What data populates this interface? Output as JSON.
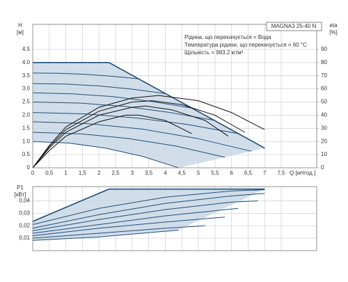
{
  "chart_data": [
    {
      "type": "line",
      "ylabel": "H",
      "yunit": "[м]",
      "y2label": "eta",
      "y2unit": "[%]",
      "xlabel": "Q [м³/год.]",
      "note": {
        "title": "MAGNA3 25-40 N",
        "lines": [
          "Рідина, що перекачується = Вода",
          "Температура рідини, що перекачується = 60 °C",
          "Щільність = 983.2 кг/м³"
        ]
      },
      "xlim": [
        0,
        8.57
      ],
      "ylim": [
        0,
        5.45
      ],
      "y2lim": [
        0,
        109
      ],
      "grid": true,
      "xticks": [
        0,
        {
          "value": 0.5,
          "label": "0,5"
        },
        1,
        {
          "value": 1.5,
          "label": "1,5"
        },
        2,
        {
          "value": 2.5,
          "label": "2,5"
        },
        3,
        {
          "value": 3.5,
          "label": "3,5"
        },
        4,
        {
          "value": 4.5,
          "label": "4,5"
        },
        5,
        {
          "value": 5.5,
          "label": "5,5"
        },
        6,
        {
          "value": 6.5,
          "label": "6,5"
        },
        7,
        {
          "value": 7.5,
          "label": "7,5"
        }
      ],
      "yticks": [
        0,
        0.5,
        {
          "value": 1,
          "label": "1.0"
        },
        1.5,
        {
          "value": 2,
          "label": "2.0"
        },
        2.5,
        {
          "value": 3,
          "label": "3.0"
        },
        3.5,
        {
          "value": 4,
          "label": "4.0"
        },
        4.5
      ],
      "y2ticks": [
        0,
        10,
        20,
        30,
        40,
        50,
        60,
        70,
        80,
        90
      ],
      "envelope": {
        "color": "#c9d8e6",
        "x": [
          0,
          2.3,
          7.0,
          4.4,
          3.3,
          2.2,
          1.1,
          0
        ],
        "y": [
          4.0,
          4.0,
          0.75,
          0,
          0.44,
          0.75,
          0.94,
          1.0
        ]
      },
      "series": [
        {
          "color": "#1f4e79",
          "x": [
            0,
            2.3,
            7.0
          ],
          "values": [
            4.0,
            4.0,
            0.75
          ]
        },
        {
          "color": "#1f4e79",
          "x": [
            0,
            0.8,
            1.6,
            2.4,
            3.2
          ],
          "values": [
            3.6,
            3.59,
            3.55,
            3.48,
            3.38
          ]
        },
        {
          "color": "#1f4e79",
          "x": [
            0,
            1,
            2,
            3,
            4
          ],
          "values": [
            3.2,
            3.18,
            3.11,
            2.99,
            2.82
          ]
        },
        {
          "color": "#1f4e79",
          "x": [
            0,
            1.2,
            2.4,
            3.6,
            4.8
          ],
          "values": [
            2.85,
            2.81,
            2.71,
            2.52,
            2.27
          ]
        },
        {
          "color": "#1f4e79",
          "x": [
            0,
            1.4,
            2.8,
            4.1,
            5.5
          ],
          "values": [
            2.5,
            2.46,
            2.33,
            2.11,
            1.8
          ]
        },
        {
          "color": "#1f4e79",
          "x": [
            0,
            1.55,
            3.1,
            4.65,
            6.2
          ],
          "values": [
            2.1,
            2.05,
            1.9,
            1.65,
            1.3
          ]
        },
        {
          "color": "#1f4e79",
          "x": [
            0,
            1.65,
            3.3,
            4.95,
            6.6
          ],
          "values": [
            1.75,
            1.68,
            1.47,
            1.12,
            0.63
          ]
        },
        {
          "color": "#1f4e79",
          "x": [
            0,
            1.45,
            2.9,
            4.35,
            5.8
          ],
          "values": [
            1.35,
            1.29,
            1.11,
            0.82,
            0.4
          ]
        },
        {
          "color": "#1f4e79",
          "x": [
            0,
            1.1,
            2.2,
            3.3,
            4.4
          ],
          "values": [
            1.0,
            0.94,
            0.75,
            0.44,
            0
          ]
        },
        {
          "color": "#111111",
          "axis": "y2",
          "x": [
            0,
            0.5,
            1,
            2,
            3,
            3.8,
            5,
            6,
            7
          ],
          "values": [
            0,
            17,
            31,
            46,
            53,
            55,
            51,
            42,
            29
          ]
        },
        {
          "color": "#111111",
          "axis": "y2",
          "x": [
            0,
            0.5,
            1,
            2,
            3,
            3.6,
            4.5,
            5.5,
            6.4
          ],
          "values": [
            0,
            16,
            29,
            43,
            50,
            51,
            48,
            40,
            27
          ]
        },
        {
          "color": "#111111",
          "axis": "y2",
          "x": [
            0,
            0.5,
            1,
            2,
            3,
            3.4,
            4.2,
            5.2,
            5.9
          ],
          "values": [
            0,
            15,
            27,
            40,
            46,
            47,
            44,
            36,
            24
          ]
        },
        {
          "color": "#111111",
          "axis": "y2",
          "x": [
            0,
            0.5,
            1,
            2,
            2.8,
            3.2,
            4,
            4.8
          ],
          "values": [
            0,
            13,
            24,
            35,
            40,
            40,
            36,
            26
          ]
        }
      ]
    },
    {
      "type": "line",
      "ylabel": "P1",
      "yunit": "[кВт]",
      "xlim": [
        0,
        8.57
      ],
      "ylim": [
        0,
        0.0515
      ],
      "grid": true,
      "yticks": [
        {
          "value": 0.01,
          "label": "0,01"
        },
        {
          "value": 0.02,
          "label": "0,02"
        },
        {
          "value": 0.03,
          "label": "0,03"
        },
        {
          "value": 0.04,
          "label": "0,04"
        }
      ],
      "envelope": {
        "color": "#c9d8e6",
        "x": [
          0,
          2.3,
          7,
          4.4,
          2,
          0
        ],
        "y": [
          0.0235,
          0.0495,
          0.0495,
          0.0165,
          0.011,
          0.0083
        ]
      },
      "series": [
        {
          "color": "#1f4e79",
          "x": [
            0,
            2.3,
            7
          ],
          "values": [
            0.0235,
            0.0495,
            0.0495
          ]
        },
        {
          "color": "#1f4e79",
          "x": [
            0,
            2,
            4,
            6,
            7
          ],
          "values": [
            0.021,
            0.034,
            0.043,
            0.048,
            0.049
          ]
        },
        {
          "color": "#1f4e79",
          "x": [
            0,
            2,
            4,
            6,
            7
          ],
          "values": [
            0.018,
            0.029,
            0.038,
            0.044,
            0.046
          ]
        },
        {
          "color": "#1f4e79",
          "x": [
            0,
            2,
            4,
            6,
            6.8
          ],
          "values": [
            0.016,
            0.025,
            0.033,
            0.039,
            0.04
          ]
        },
        {
          "color": "#1f4e79",
          "x": [
            0,
            2,
            4,
            6.2
          ],
          "values": [
            0.014,
            0.021,
            0.028,
            0.034
          ]
        },
        {
          "color": "#1f4e79",
          "x": [
            0,
            2,
            4,
            5.8
          ],
          "values": [
            0.012,
            0.018,
            0.023,
            0.027
          ]
        },
        {
          "color": "#1f4e79",
          "x": [
            0,
            2,
            4,
            5.2
          ],
          "values": [
            0.01,
            0.014,
            0.018,
            0.02
          ]
        },
        {
          "color": "#1f4e79",
          "x": [
            0,
            2,
            4.4
          ],
          "values": [
            0.0083,
            0.011,
            0.0165
          ]
        }
      ]
    }
  ]
}
